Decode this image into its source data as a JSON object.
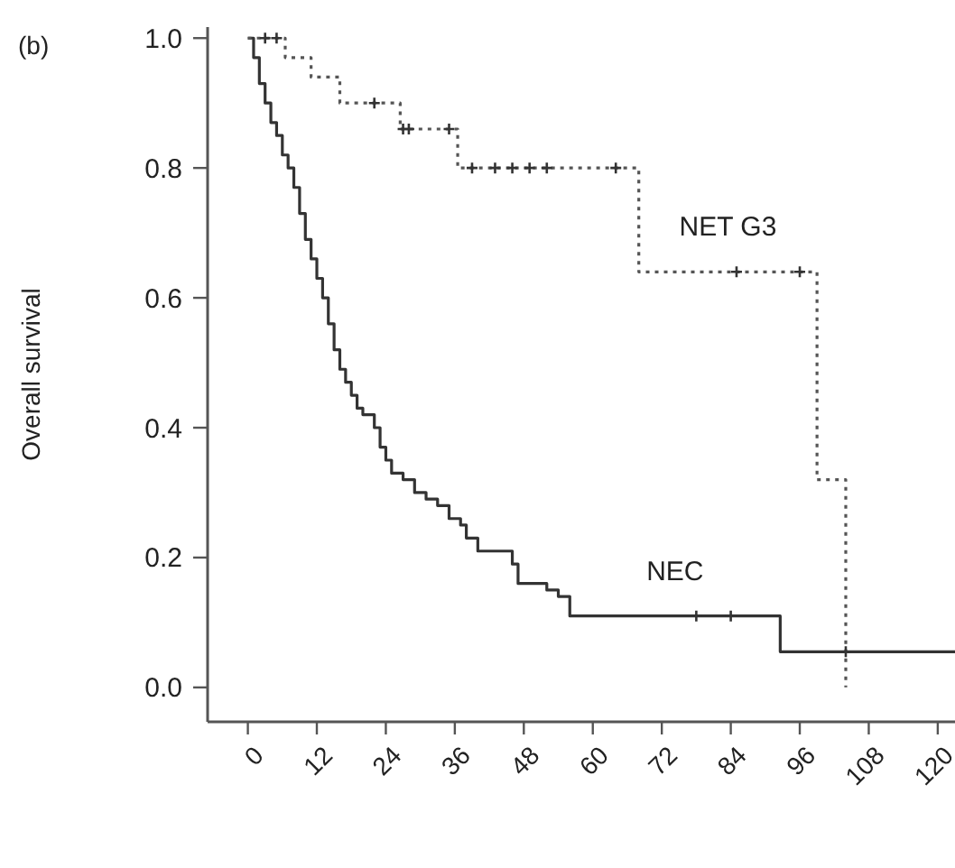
{
  "chart_data": {
    "type": "step",
    "ylabel": "Overall survival",
    "annotations": [
      "(b)"
    ],
    "xlim": [
      -7,
      123
    ],
    "ylim": [
      -0.053,
      1.017
    ],
    "xticks": [
      0,
      12,
      24,
      36,
      48,
      60,
      72,
      84,
      96,
      108,
      120
    ],
    "yticks": [
      {
        "value": 0,
        "label": "0.0"
      },
      {
        "value": 0.2,
        "label": "0.2"
      },
      {
        "value": 0.4,
        "label": "0.4"
      },
      {
        "value": 0.6,
        "label": "0.6"
      },
      {
        "value": 0.8,
        "label": "0.8"
      },
      {
        "value": 1,
        "label": "1.0"
      }
    ],
    "grid": false,
    "series": [
      {
        "name": "NEC",
        "color": "#333333",
        "line_style": "solid",
        "x": [
          0,
          1,
          2,
          3,
          4,
          5,
          6,
          7,
          8,
          9,
          10,
          11,
          12,
          13,
          14,
          15,
          16,
          17,
          18,
          19,
          20,
          22,
          23,
          24,
          25,
          27,
          29,
          31,
          33,
          35,
          37,
          38,
          40,
          46,
          47,
          52,
          54,
          56,
          92.6,
          123
        ],
        "values": [
          1.0,
          0.97,
          0.93,
          0.9,
          0.87,
          0.85,
          0.82,
          0.8,
          0.77,
          0.73,
          0.69,
          0.66,
          0.63,
          0.6,
          0.56,
          0.52,
          0.49,
          0.47,
          0.45,
          0.43,
          0.42,
          0.4,
          0.37,
          0.35,
          0.33,
          0.32,
          0.3,
          0.29,
          0.28,
          0.26,
          0.25,
          0.23,
          0.21,
          0.19,
          0.16,
          0.15,
          0.14,
          0.11,
          0.055,
          0.055
        ]
      },
      {
        "name": "NET G3",
        "color": "#555555",
        "line_style": "dotted",
        "x": [
          0,
          6.5,
          11,
          16,
          26.5,
          36.5,
          68,
          99,
          104
        ],
        "values": [
          1.0,
          0.97,
          0.94,
          0.9,
          0.86,
          0.8,
          0.64,
          0.32,
          0.0
        ]
      },
      {
        "type": "scatter",
        "marker": "cross",
        "color": "#333333",
        "x": [
          3,
          5,
          22,
          27,
          28,
          35,
          39,
          43,
          46,
          49,
          52,
          64,
          78,
          84,
          85,
          96,
          104
        ],
        "values": [
          1.0,
          1.0,
          0.9,
          0.86,
          0.86,
          0.86,
          0.8,
          0.8,
          0.8,
          0.8,
          0.8,
          0.8,
          0.11,
          0.11,
          0.64,
          0.64,
          0.055
        ]
      }
    ]
  }
}
